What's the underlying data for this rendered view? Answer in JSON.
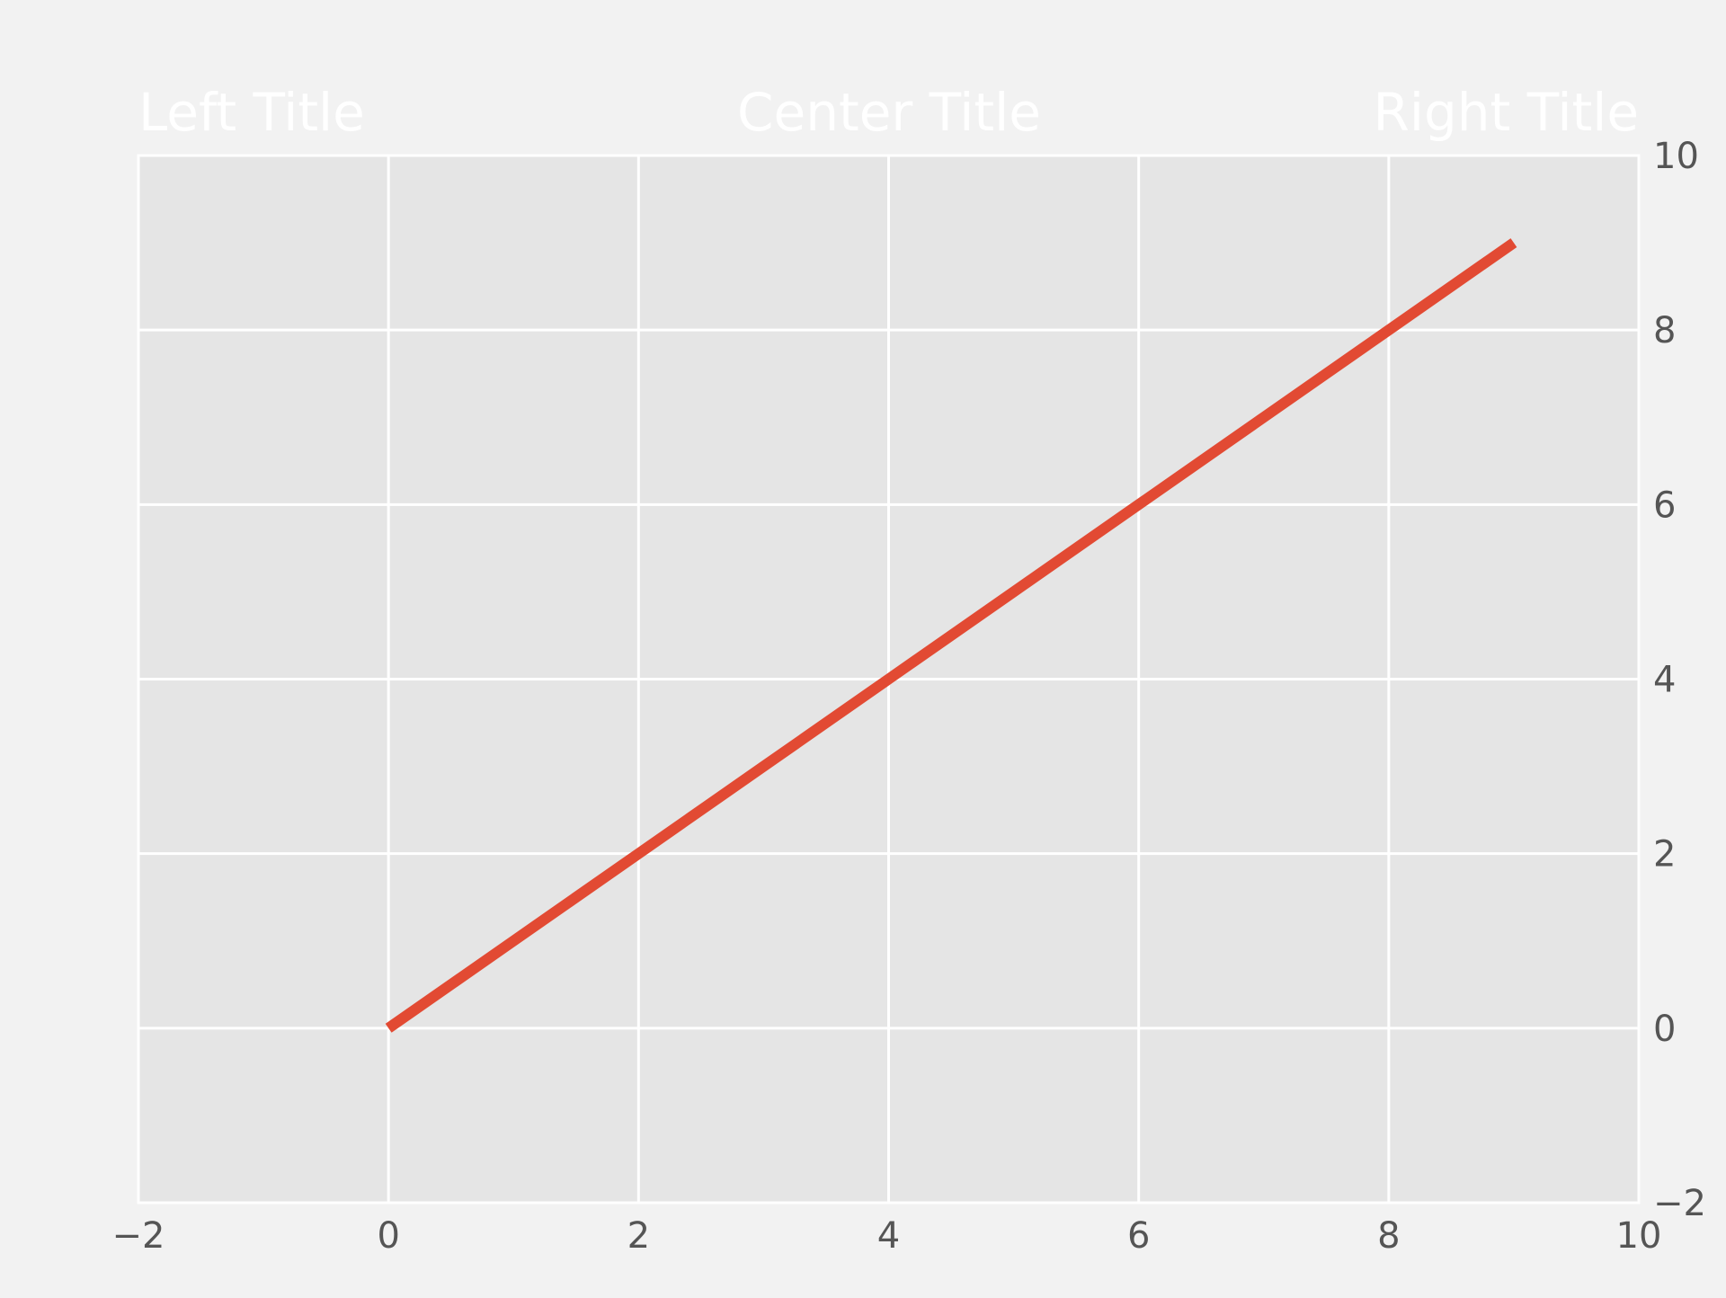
{
  "chart_data": {
    "type": "line",
    "titles": {
      "left": "Left Title",
      "center": "Center Title",
      "right": "Right Title"
    },
    "x": [
      0,
      1,
      2,
      3,
      4,
      5,
      6,
      7,
      8,
      9
    ],
    "series": [
      {
        "values": [
          0,
          1,
          2,
          3,
          4,
          5,
          6,
          7,
          8,
          9
        ],
        "color": "#e24a33"
      }
    ],
    "xlim": [
      -2,
      10
    ],
    "ylim": [
      -2,
      10
    ],
    "xticks": [
      -2,
      0,
      2,
      4,
      6,
      8,
      10
    ],
    "yticks": [
      -2,
      0,
      2,
      4,
      6,
      8,
      10
    ],
    "xtick_labels": [
      "−2",
      "0",
      "2",
      "4",
      "6",
      "8",
      "10"
    ],
    "ytick_labels": [
      "−2",
      "0",
      "2",
      "4",
      "6",
      "8",
      "10"
    ],
    "y_axis_side": "right",
    "grid": true,
    "xlabel": "",
    "ylabel": "",
    "colors": {
      "background": "#f2f2f2",
      "plot_area": "#e5e5e5",
      "grid": "#ffffff",
      "tick_label": "#555555",
      "title": "#ffffff"
    }
  }
}
